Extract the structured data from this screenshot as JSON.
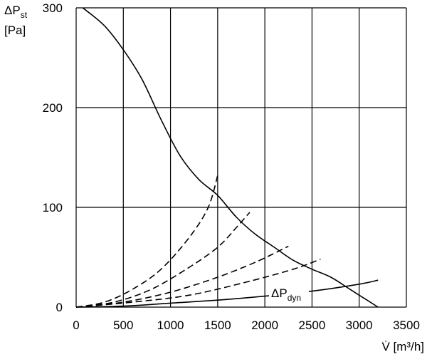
{
  "chart_data": {
    "type": "line",
    "ylabel_main": "ΔP",
    "ylabel_sub": "st",
    "yunit": "[Pa]",
    "xlabel": "V̇ [m³/h]",
    "xlim": [
      0,
      3500
    ],
    "ylim": [
      0,
      300
    ],
    "x_ticks": [
      0,
      500,
      1000,
      1500,
      2000,
      2500,
      3000,
      3500
    ],
    "y_ticks": [
      0,
      100,
      200,
      300
    ],
    "grid": true,
    "series": [
      {
        "style": "solid",
        "x": [
          70,
          300,
          500,
          700,
          900,
          1100,
          1300,
          1500,
          1700,
          1900,
          2100,
          2300,
          2500,
          2700,
          2900,
          3100,
          3200
        ],
        "y": [
          300,
          282,
          258,
          228,
          188,
          152,
          128,
          112,
          90,
          73,
          60,
          47,
          38,
          30,
          18,
          6,
          0
        ]
      },
      {
        "style": "dashed",
        "x": [
          0,
          300,
          600,
          900,
          1200,
          1400,
          1500
        ],
        "y": [
          0,
          5,
          18,
          38,
          70,
          100,
          132
        ]
      },
      {
        "style": "dashed",
        "x": [
          0,
          400,
          800,
          1200,
          1500,
          1700,
          1840
        ],
        "y": [
          0,
          5,
          18,
          40,
          60,
          80,
          95
        ]
      },
      {
        "style": "dashed",
        "x": [
          0,
          500,
          1000,
          1500,
          1900,
          2250
        ],
        "y": [
          0,
          5,
          15,
          30,
          45,
          61
        ]
      },
      {
        "style": "dashed",
        "x": [
          0,
          600,
          1200,
          1800,
          2300,
          2590
        ],
        "y": [
          0,
          5,
          12,
          25,
          38,
          48
        ]
      },
      {
        "name": "ΔPdyn",
        "label_main": "ΔP",
        "label_sub": "dyn",
        "style": "solid",
        "x": [
          0,
          500,
          1000,
          1500,
          2000,
          2500,
          3000,
          3200
        ],
        "y": [
          0,
          1,
          4,
          7,
          11,
          16,
          23,
          27
        ]
      }
    ]
  }
}
